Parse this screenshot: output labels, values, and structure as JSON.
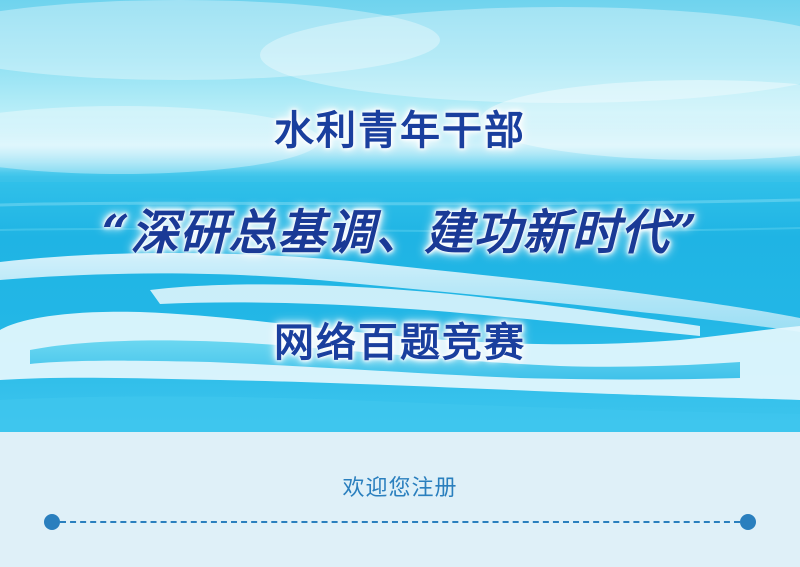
{
  "hero": {
    "title_line1": "水利青年干部",
    "title_line2": "“深研总基调、建功新时代”",
    "title_line3": "网络百题竞赛"
  },
  "registration": {
    "welcome_text": "欢迎您注册"
  },
  "colors": {
    "title": "#1a3f9e",
    "accent": "#2a7fbe",
    "section_bg": "#dff0f8",
    "sea": "#1fb4e4"
  }
}
